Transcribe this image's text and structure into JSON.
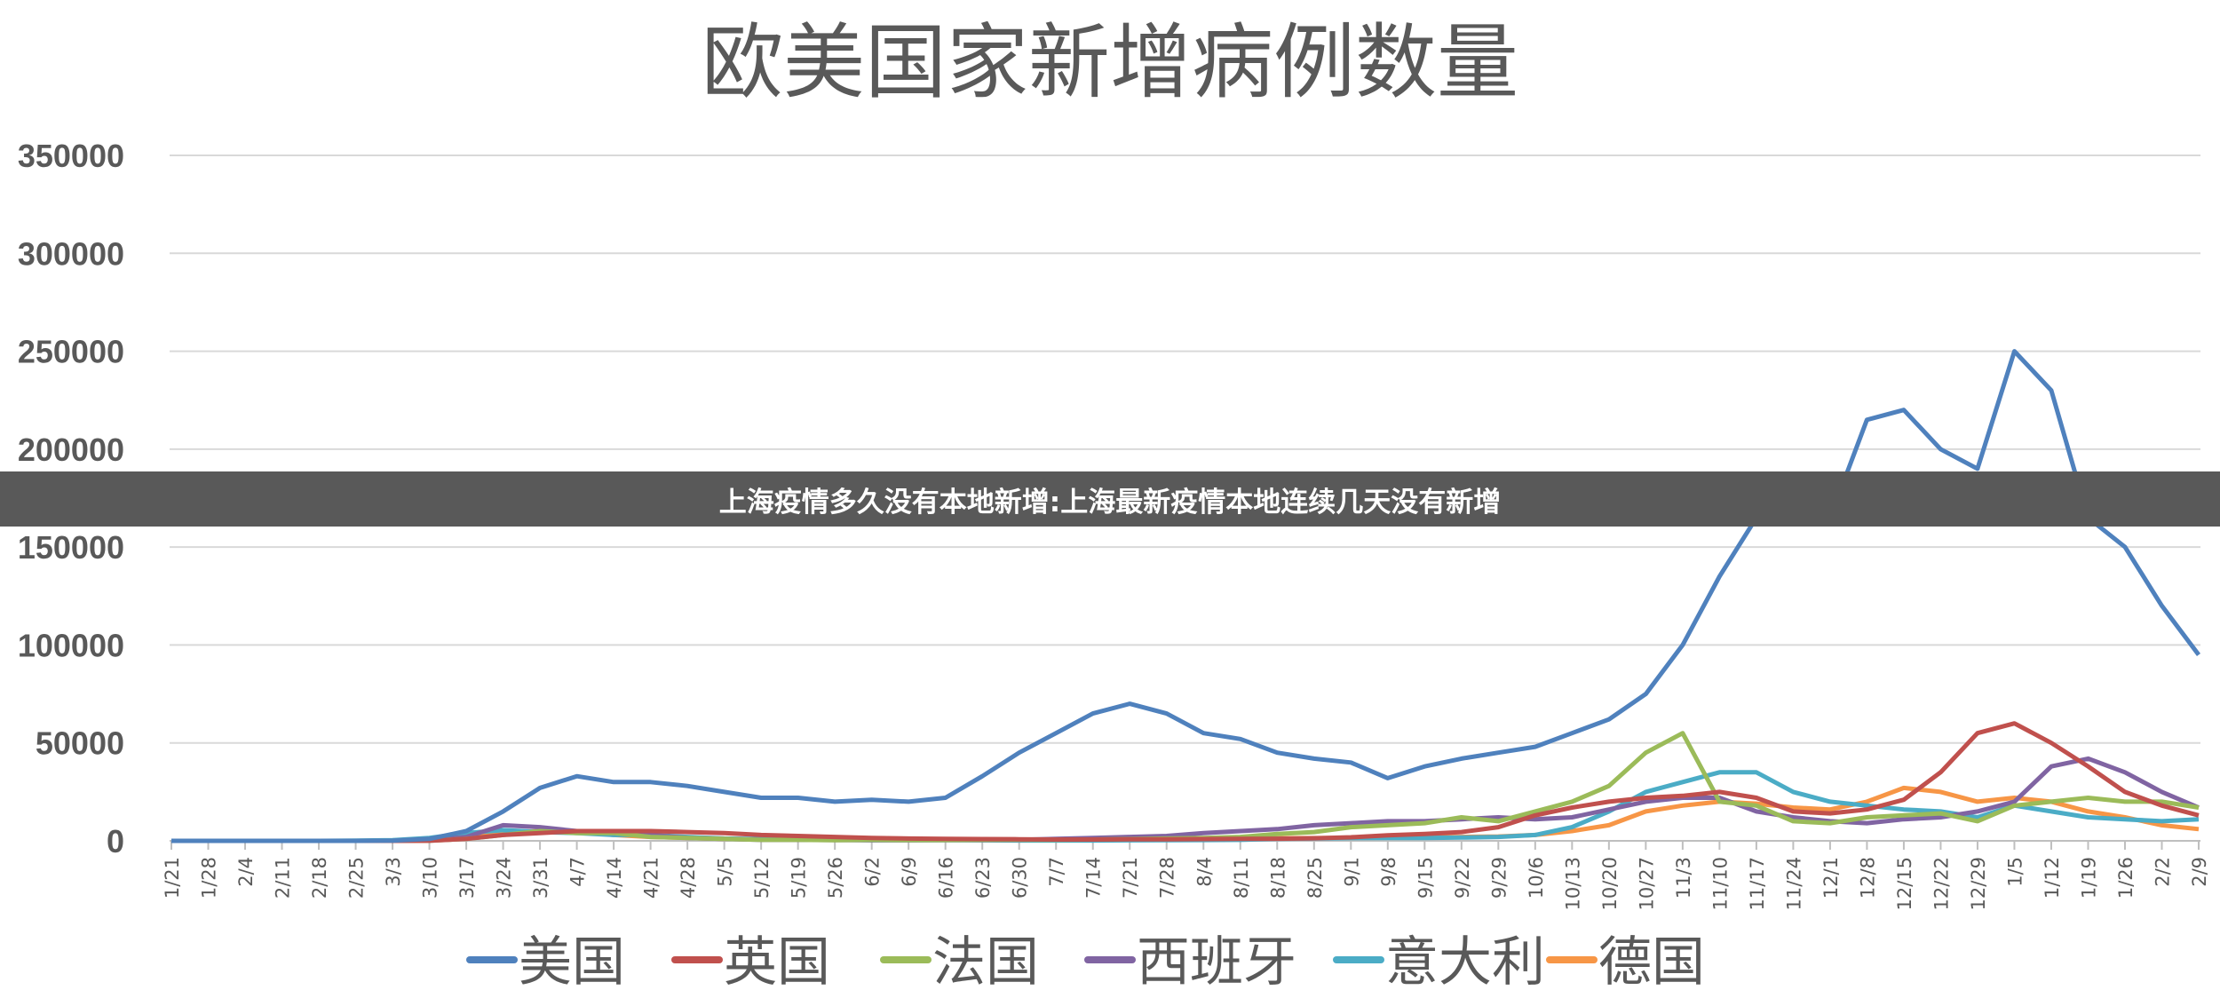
{
  "banner": {
    "text": "上海疫情多久没有本地新增:上海最新疫情本地连续几天没有新增"
  },
  "chart_data": {
    "type": "line",
    "title": "欧美国家新增病例数量",
    "xlabel": "",
    "ylabel": "",
    "ylim": [
      0,
      350000
    ],
    "yticks": [
      0,
      50000,
      100000,
      150000,
      200000,
      250000,
      300000,
      350000
    ],
    "grid": true,
    "legend_position": "bottom",
    "categories": [
      "1/21",
      "1/28",
      "2/4",
      "2/11",
      "2/18",
      "2/25",
      "3/3",
      "3/10",
      "3/17",
      "3/24",
      "3/31",
      "4/7",
      "4/14",
      "4/21",
      "4/28",
      "5/5",
      "5/12",
      "5/19",
      "5/26",
      "6/2",
      "6/9",
      "6/16",
      "6/23",
      "6/30",
      "7/7",
      "7/14",
      "7/21",
      "7/28",
      "8/4",
      "8/11",
      "8/18",
      "8/25",
      "9/1",
      "9/8",
      "9/15",
      "9/22",
      "9/29",
      "10/6",
      "10/13",
      "10/20",
      "10/27",
      "11/3",
      "11/10",
      "11/17",
      "11/24",
      "12/1",
      "12/8",
      "12/15",
      "12/22",
      "12/29",
      "1/5",
      "1/12",
      "1/19",
      "1/26",
      "2/2",
      "2/9"
    ],
    "series": [
      {
        "name": "美国",
        "color": "#4f81bd",
        "values": [
          0,
          0,
          0,
          0,
          0,
          0,
          100,
          1000,
          5000,
          15000,
          27000,
          33000,
          30000,
          30000,
          28000,
          25000,
          22000,
          22000,
          20000,
          21000,
          20000,
          22000,
          33000,
          45000,
          55000,
          65000,
          70000,
          65000,
          55000,
          52000,
          45000,
          42000,
          40000,
          32000,
          38000,
          42000,
          45000,
          48000,
          55000,
          62000,
          75000,
          100000,
          135000,
          165000,
          175000,
          165000,
          215000,
          220000,
          200000,
          190000,
          250000,
          230000,
          165000,
          150000,
          120000,
          95000
        ]
      },
      {
        "name": "英国",
        "color": "#c0504d",
        "values": [
          0,
          0,
          0,
          0,
          0,
          0,
          0,
          50,
          1000,
          3000,
          4000,
          5000,
          5000,
          5000,
          4500,
          4000,
          3000,
          2500,
          2000,
          1500,
          1200,
          1000,
          900,
          800,
          700,
          700,
          800,
          800,
          900,
          1000,
          1100,
          1300,
          1800,
          2800,
          3500,
          4500,
          7000,
          13000,
          17000,
          20000,
          22000,
          23000,
          25000,
          22000,
          15000,
          14000,
          16000,
          21000,
          35000,
          55000,
          60000,
          50000,
          38000,
          25000,
          18000,
          13000
        ]
      },
      {
        "name": "法国",
        "color": "#9bbb59",
        "values": [
          0,
          0,
          0,
          0,
          0,
          0,
          0,
          100,
          1000,
          3000,
          5000,
          4000,
          4000,
          2000,
          1500,
          1000,
          500,
          500,
          300,
          500,
          400,
          400,
          500,
          600,
          600,
          700,
          900,
          1200,
          1500,
          2000,
          3500,
          4500,
          7000,
          8000,
          9000,
          12000,
          10000,
          15000,
          20000,
          28000,
          45000,
          55000,
          20000,
          18000,
          10000,
          9000,
          12000,
          13000,
          14000,
          10000,
          18000,
          20000,
          22000,
          20000,
          20000,
          17000
        ]
      },
      {
        "name": "西班牙",
        "color": "#8064a2",
        "values": [
          0,
          0,
          0,
          0,
          0,
          0,
          0,
          300,
          2000,
          8000,
          7000,
          5000,
          4000,
          3000,
          1500,
          1000,
          500,
          500,
          400,
          300,
          300,
          400,
          400,
          500,
          1000,
          1500,
          2000,
          2500,
          4000,
          5000,
          6000,
          8000,
          9000,
          10000,
          10000,
          11000,
          12000,
          11000,
          12000,
          16000,
          20000,
          22000,
          22000,
          15000,
          12000,
          10000,
          9000,
          11000,
          12000,
          15000,
          20000,
          38000,
          42000,
          35000,
          25000,
          17000
        ]
      },
      {
        "name": "意大利",
        "color": "#4bacc6",
        "values": [
          0,
          0,
          0,
          0,
          0,
          100,
          300,
          1500,
          4000,
          5500,
          4500,
          4000,
          3000,
          3000,
          2000,
          1200,
          900,
          700,
          500,
          300,
          300,
          300,
          250,
          200,
          200,
          200,
          250,
          300,
          400,
          500,
          1000,
          1200,
          1400,
          1500,
          1500,
          1700,
          2000,
          3000,
          7000,
          15000,
          25000,
          30000,
          35000,
          35000,
          25000,
          20000,
          18000,
          16000,
          15000,
          12000,
          18000,
          15000,
          12000,
          11000,
          10000,
          11000
        ]
      },
      {
        "name": "德国",
        "color": "#f79646",
        "values": [
          0,
          0,
          0,
          0,
          0,
          0,
          50,
          500,
          2000,
          4000,
          5000,
          5000,
          3000,
          2000,
          1500,
          1000,
          700,
          600,
          500,
          400,
          400,
          500,
          600,
          500,
          400,
          500,
          600,
          800,
          900,
          1200,
          1300,
          1400,
          1500,
          1600,
          1800,
          2000,
          2200,
          3000,
          5000,
          8000,
          15000,
          18000,
          20000,
          19000,
          17000,
          16000,
          20000,
          27000,
          25000,
          20000,
          22000,
          20000,
          15000,
          12000,
          8000,
          6000
        ]
      }
    ]
  }
}
